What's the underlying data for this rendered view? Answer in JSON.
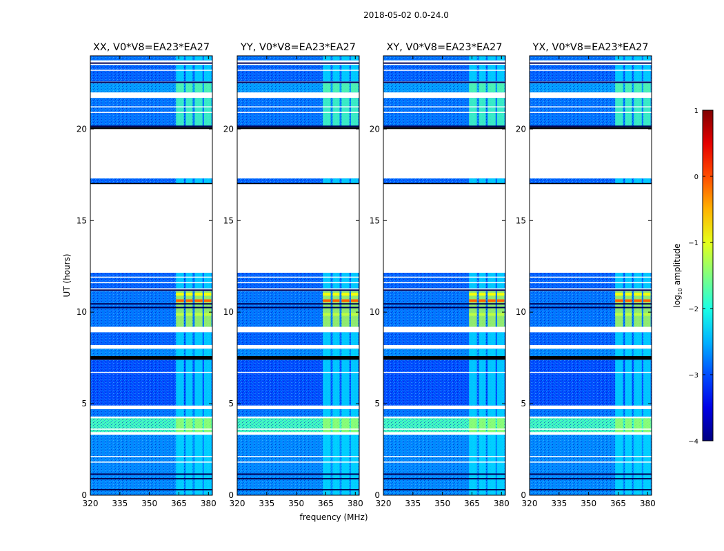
{
  "chart_data": {
    "type": "heatmap",
    "title": "2018-05-02 0.0-24.0",
    "xlabel": "frequency (MHz)",
    "ylabel": "UT (hours)",
    "xlim": [
      320,
      382
    ],
    "ylim": [
      0,
      24
    ],
    "xticks": [
      320,
      335,
      350,
      365,
      380
    ],
    "yticks": [
      0,
      5,
      10,
      15,
      20
    ],
    "panels": [
      {
        "title": "XX, V0*V8=EA23*EA27"
      },
      {
        "title": "YY, V0*V8=EA23*EA27"
      },
      {
        "title": "XY, V0*V8=EA23*EA27"
      },
      {
        "title": "YX, V0*V8=EA23*EA27"
      }
    ],
    "rfi_band_mhz": [
      363,
      381
    ],
    "rfi_channels_mhz": [
      [
        363.5,
        367.5
      ],
      [
        368.5,
        372.0
      ],
      [
        373.0,
        377.0
      ],
      [
        377.8,
        381.5
      ]
    ],
    "data_blocks_hours": [
      {
        "from": 0.0,
        "to": 3.3,
        "level": -2.7
      },
      {
        "from": 3.45,
        "to": 4.2,
        "level": -1.8
      },
      {
        "from": 4.3,
        "to": 4.7,
        "level": -2.8
      },
      {
        "from": 4.9,
        "to": 7.4,
        "level": -3.0
      },
      {
        "from": 7.6,
        "to": 8.0,
        "level": -2.7
      },
      {
        "from": 8.2,
        "to": 8.9,
        "level": -2.9
      },
      {
        "from": 9.2,
        "to": 11.15,
        "level": -2.8
      },
      {
        "from": 11.3,
        "to": 12.15,
        "level": -2.9
      },
      {
        "from": 17.0,
        "to": 17.3,
        "level": -2.9
      },
      {
        "from": 20.1,
        "to": 21.7,
        "level": -2.8
      },
      {
        "from": 22.0,
        "to": 22.5,
        "level": -2.6
      },
      {
        "from": 22.6,
        "to": 23.5,
        "level": -2.9
      },
      {
        "from": 23.75,
        "to": 24.0,
        "level": -2.8
      }
    ],
    "colorbar": {
      "label": "log10 amplitude",
      "label_base": "log",
      "label_sub": "10",
      "label_rest": " amplitude",
      "range": [
        -4,
        1
      ],
      "ticks": [
        1,
        0,
        -1,
        -2,
        -3,
        -4
      ],
      "tick_labels": [
        "1",
        "0",
        "−1",
        "−2",
        "−3",
        "−4"
      ]
    }
  }
}
